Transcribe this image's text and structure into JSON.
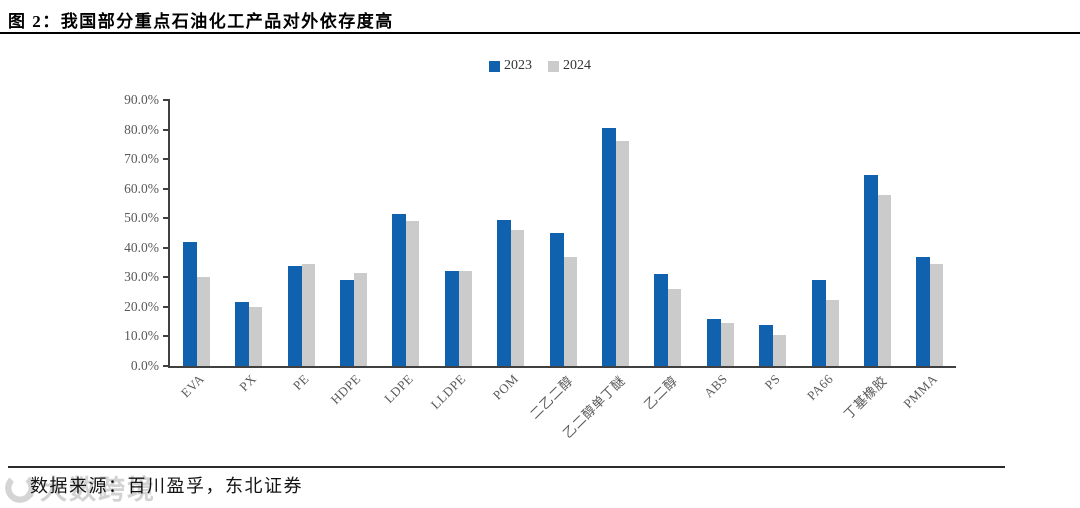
{
  "figure": {
    "title": "图 2：我国部分重点石油化工产品对外依存度高"
  },
  "source": {
    "text": "数据来源：百川盈孚，东北证券"
  },
  "watermark": {
    "text": "大数跨境"
  },
  "colors": {
    "bar_2023": "#1062AE",
    "bar_2024": "#CBCBCB",
    "axis": "#404040",
    "tick_label": "#595959"
  },
  "chart_data": {
    "type": "bar",
    "title": "图 2：我国部分重点石油化工产品对外依存度高",
    "xlabel": "",
    "ylabel": "",
    "ylim": [
      0,
      90
    ],
    "y_tick_step": 10,
    "y_tick_labels": [
      "90.0%",
      "80.0%",
      "70.0%",
      "60.0%",
      "50.0%",
      "40.0%",
      "30.0%",
      "20.0%",
      "10.0%",
      "0.0%"
    ],
    "grid": false,
    "legend_position": "top-center",
    "categories": [
      "EVA",
      "PX",
      "PE",
      "HDPE",
      "LDPE",
      "LLDPE",
      "POM",
      "二乙二醇",
      "乙二醇单丁醚",
      "乙二醇",
      "ABS",
      "PS",
      "PA66",
      "丁基橡胶",
      "PMMA"
    ],
    "series": [
      {
        "name": "2023",
        "color": "#1062AE",
        "values": [
          42.0,
          21.5,
          34.0,
          29.0,
          51.5,
          32.0,
          49.5,
          45.0,
          80.5,
          31.0,
          16.0,
          14.0,
          29.0,
          64.5,
          37.0
        ]
      },
      {
        "name": "2024",
        "color": "#CBCBCB",
        "values": [
          30.0,
          20.0,
          34.5,
          31.5,
          49.0,
          32.0,
          46.0,
          37.0,
          76.0,
          26.0,
          14.5,
          10.5,
          22.5,
          58.0,
          34.5
        ]
      }
    ]
  }
}
